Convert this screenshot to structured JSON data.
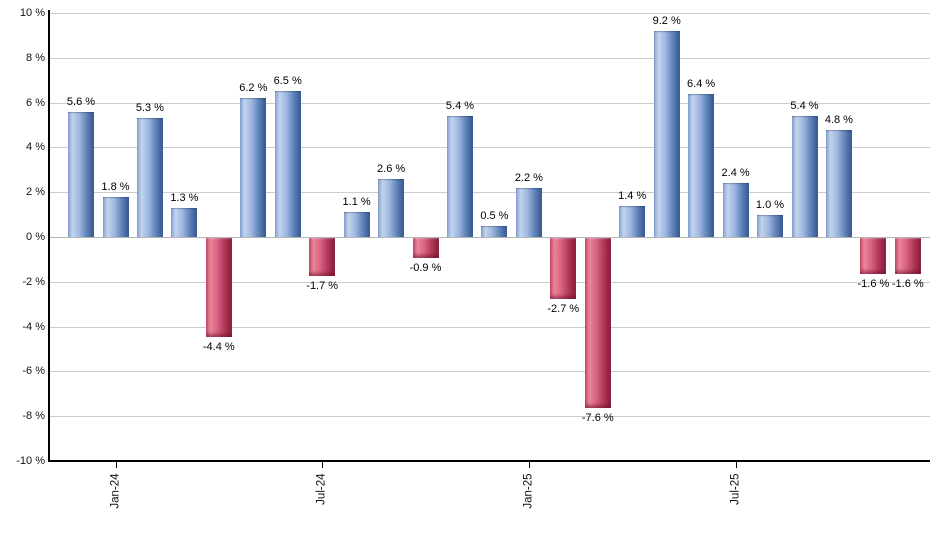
{
  "chart_data": {
    "type": "bar",
    "title": "",
    "unit": "%",
    "ylim": [
      -10,
      10
    ],
    "y_tick_step": 2,
    "grid": true,
    "legend": "none",
    "values": [
      5.6,
      1.8,
      5.3,
      1.3,
      -4.4,
      6.2,
      6.5,
      -1.7,
      1.1,
      2.6,
      -0.9,
      5.4,
      0.5,
      2.2,
      -2.7,
      -7.6,
      1.4,
      9.2,
      6.4,
      2.4,
      1.0,
      5.4,
      4.8,
      -1.6,
      -1.6
    ],
    "bar_labels": [
      "5.6 %",
      "1.8 %",
      "5.3 %",
      "1.3 %",
      "-4.4 %",
      "6.2 %",
      "6.5 %",
      "-1.7 %",
      "1.1 %",
      "2.6 %",
      "-0.9 %",
      "5.4 %",
      "0.5 %",
      "2.2 %",
      "-2.7 %",
      "-7.6 %",
      "1.4 %",
      "9.2 %",
      "6.4 %",
      "2.4 %",
      "1.0 %",
      "5.4 %",
      "4.8 %",
      "-1.6 %",
      "-1.6 %"
    ],
    "y_tick_labels": [
      "10 %",
      "8 %",
      "6 %",
      "4 %",
      "2 %",
      "0 %",
      "-2 %",
      "-4 %",
      "-6 %",
      "-8 %",
      "-10 %"
    ],
    "x_ticks": [
      {
        "bar_index": 1,
        "label": "Jan-24"
      },
      {
        "bar_index": 7,
        "label": "Jul-24"
      },
      {
        "bar_index": 13,
        "label": "Jan-25"
      },
      {
        "bar_index": 19,
        "label": "Jul-25"
      }
    ],
    "colors": {
      "positive_bar": "#6f94ca",
      "positive_bar_light": "#c2d4ee",
      "positive_bar_dark": "#3a5c94",
      "negative_bar": "#cd5472",
      "negative_bar_light": "#ea8499",
      "negative_bar_dark": "#8e2040",
      "gridline": "#cccccc",
      "axis": "#000000",
      "background": "#ffffff"
    }
  }
}
